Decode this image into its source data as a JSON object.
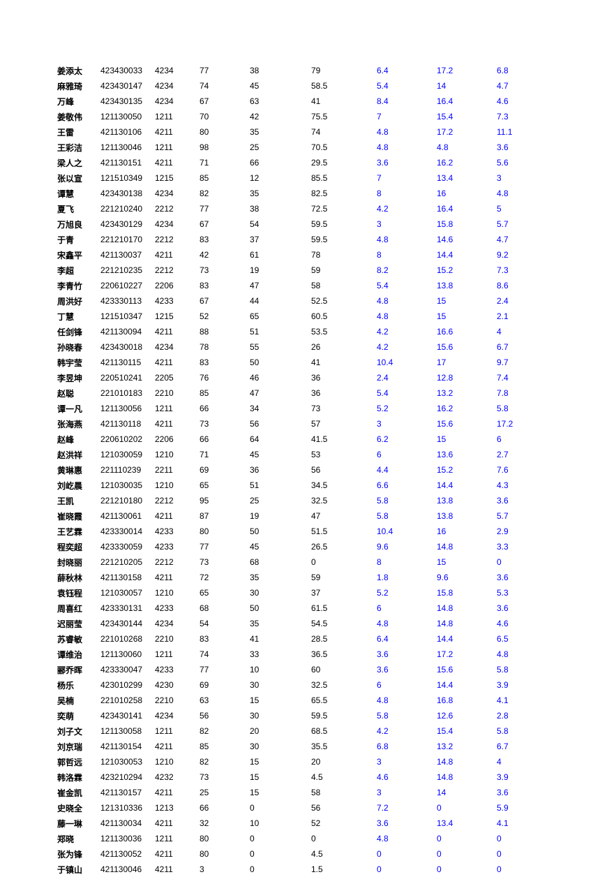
{
  "text_color_black": "#000000",
  "text_color_blue": "#0000ff",
  "background_color": "#ffffff",
  "font_size_pt": 12,
  "columns": [
    "name",
    "id",
    "code",
    "v1",
    "v2",
    "v3",
    "b1",
    "b2",
    "b3"
  ],
  "column_colors": [
    "#000000",
    "#000000",
    "#000000",
    "#000000",
    "#000000",
    "#000000",
    "#0000ff",
    "#0000ff",
    "#0000ff"
  ],
  "rows": [
    [
      "姜添太",
      "423430033",
      "4234",
      "77",
      "38",
      "79",
      "6.4",
      "17.2",
      "6.8"
    ],
    [
      "麻雅琦",
      "423430147",
      "4234",
      "74",
      "45",
      "58.5",
      "5.4",
      "14",
      "4.7"
    ],
    [
      "万峰",
      "423430135",
      "4234",
      "67",
      "63",
      "41",
      "8.4",
      "16.4",
      "4.6"
    ],
    [
      "姜敬伟",
      "121130050",
      "1211",
      "70",
      "42",
      "75.5",
      "7",
      "15.4",
      "7.3"
    ],
    [
      "王雷",
      "421130106",
      "4211",
      "80",
      "35",
      "74",
      "4.8",
      "17.2",
      "11.1"
    ],
    [
      "王彩洁",
      "121130046",
      "1211",
      "98",
      "25",
      "70.5",
      "4.8",
      "4.8",
      "3.6"
    ],
    [
      "梁人之",
      "421130151",
      "4211",
      "71",
      "66",
      "29.5",
      "3.6",
      "16.2",
      "5.6"
    ],
    [
      "张以宣",
      "121510349",
      "1215",
      "85",
      "12",
      "85.5",
      "7",
      "13.4",
      "3"
    ],
    [
      "谭慧",
      "423430138",
      "4234",
      "82",
      "35",
      "82.5",
      "8",
      "16",
      "4.8"
    ],
    [
      "夏飞",
      "221210240",
      "2212",
      "77",
      "38",
      "72.5",
      "4.2",
      "16.4",
      "5"
    ],
    [
      "万旭良",
      "423430129",
      "4234",
      "67",
      "54",
      "59.5",
      "3",
      "15.8",
      "5.7"
    ],
    [
      "于青",
      "221210170",
      "2212",
      "83",
      "37",
      "59.5",
      "4.8",
      "14.6",
      "4.7"
    ],
    [
      "宋鑫平",
      "421130037",
      "4211",
      "42",
      "61",
      "78",
      "8",
      "14.4",
      "9.2"
    ],
    [
      "李超",
      "221210235",
      "2212",
      "73",
      "19",
      "59",
      "8.2",
      "15.2",
      "7.3"
    ],
    [
      "李青竹",
      "220610227",
      "2206",
      "83",
      "47",
      "58",
      "5.4",
      "13.8",
      "8.6"
    ],
    [
      "周洪好",
      "423330113",
      "4233",
      "67",
      "44",
      "52.5",
      "4.8",
      "15",
      "2.4"
    ],
    [
      "丁慧",
      "121510347",
      "1215",
      "52",
      "65",
      "60.5",
      "4.8",
      "15",
      "2.1"
    ],
    [
      "任剑锋",
      "421130094",
      "4211",
      "88",
      "51",
      "53.5",
      "4.2",
      "16.6",
      "4"
    ],
    [
      "孙晓春",
      "423430018",
      "4234",
      "78",
      "55",
      "26",
      "4.2",
      "15.6",
      "6.7"
    ],
    [
      "韩宇莹",
      "421130115",
      "4211",
      "83",
      "50",
      "41",
      "10.4",
      "17",
      "9.7"
    ],
    [
      "李昱坤",
      "220510241",
      "2205",
      "76",
      "46",
      "36",
      "2.4",
      "12.8",
      "7.4"
    ],
    [
      "赵聪",
      "221010183",
      "2210",
      "85",
      "47",
      "36",
      "5.4",
      "13.2",
      "7.8"
    ],
    [
      "谭一凡",
      "121130056",
      "1211",
      "66",
      "34",
      "73",
      "5.2",
      "16.2",
      "5.8"
    ],
    [
      "张海燕",
      "421130118",
      "4211",
      "73",
      "56",
      "57",
      "3",
      "15.6",
      "17.2"
    ],
    [
      "赵峰",
      "220610202",
      "2206",
      "66",
      "64",
      "41.5",
      "6.2",
      "15",
      "6"
    ],
    [
      "赵洪祥",
      "121030059",
      "1210",
      "71",
      "45",
      "53",
      "6",
      "13.6",
      "2.7"
    ],
    [
      "黄琳惠",
      "221110239",
      "2211",
      "69",
      "36",
      "56",
      "4.4",
      "15.2",
      "7.6"
    ],
    [
      "刘屹晨",
      "121030035",
      "1210",
      "65",
      "51",
      "34.5",
      "6.6",
      "14.4",
      "4.3"
    ],
    [
      "王凯",
      "221210180",
      "2212",
      "95",
      "25",
      "32.5",
      "5.8",
      "13.8",
      "3.6"
    ],
    [
      "崔晓霞",
      "421130061",
      "4211",
      "87",
      "19",
      "47",
      "5.8",
      "13.8",
      "5.7"
    ],
    [
      "王艺霖",
      "423330014",
      "4233",
      "80",
      "50",
      "51.5",
      "10.4",
      "16",
      "2.9"
    ],
    [
      "程奕超",
      "423330059",
      "4233",
      "77",
      "45",
      "26.5",
      "9.6",
      "14.8",
      "3.3"
    ],
    [
      "封晓丽",
      "221210205",
      "2212",
      "73",
      "68",
      "0",
      "8",
      "15",
      "0"
    ],
    [
      "薛秋林",
      "421130158",
      "4211",
      "72",
      "35",
      "59",
      "1.8",
      "9.6",
      "3.6"
    ],
    [
      "袁钰程",
      "121030057",
      "1210",
      "65",
      "30",
      "37",
      "5.2",
      "15.8",
      "5.3"
    ],
    [
      "周喜红",
      "423330131",
      "4233",
      "68",
      "50",
      "61.5",
      "6",
      "14.8",
      "3.6"
    ],
    [
      "迟丽莹",
      "423430144",
      "4234",
      "54",
      "35",
      "54.5",
      "4.8",
      "14.8",
      "4.6"
    ],
    [
      "苏睿敏",
      "221010268",
      "2210",
      "83",
      "41",
      "28.5",
      "6.4",
      "14.4",
      "6.5"
    ],
    [
      "谭维治",
      "121130060",
      "1211",
      "74",
      "33",
      "36.5",
      "3.6",
      "17.2",
      "4.8"
    ],
    [
      "郦乔晖",
      "423330047",
      "4233",
      "77",
      "10",
      "60",
      "3.6",
      "15.6",
      "5.8"
    ],
    [
      "杨乐",
      "423010299",
      "4230",
      "69",
      "30",
      "32.5",
      "6",
      "14.4",
      "3.9"
    ],
    [
      "吴楠",
      "221010258",
      "2210",
      "63",
      "15",
      "65.5",
      "4.8",
      "16.8",
      "4.1"
    ],
    [
      "奕萌",
      "423430141",
      "4234",
      "56",
      "30",
      "59.5",
      "5.8",
      "12.6",
      "2.8"
    ],
    [
      "刘子文",
      "121130058",
      "1211",
      "82",
      "20",
      "68.5",
      "4.2",
      "15.4",
      "5.8"
    ],
    [
      "刘京瑞",
      "421130154",
      "4211",
      "85",
      "30",
      "35.5",
      "6.8",
      "13.2",
      "6.7"
    ],
    [
      "郭哲远",
      "121030053",
      "1210",
      "82",
      "15",
      "20",
      "3",
      "14.8",
      "4"
    ],
    [
      "韩洛霖",
      "423210294",
      "4232",
      "73",
      "15",
      "4.5",
      "4.6",
      "14.8",
      "3.9"
    ],
    [
      "崔金凯",
      "421130157",
      "4211",
      "25",
      "15",
      "58",
      "3",
      "14",
      "3.6"
    ],
    [
      "史晓全",
      "121310336",
      "1213",
      "66",
      "0",
      "56",
      "7.2",
      "0",
      "5.9"
    ],
    [
      "藤一琳",
      "421130034",
      "4211",
      "32",
      "10",
      "52",
      "3.6",
      "13.4",
      "4.1"
    ],
    [
      "郑晓",
      "121130036",
      "1211",
      "80",
      "0",
      "0",
      "4.8",
      "0",
      "0"
    ],
    [
      "张为锋",
      "421130052",
      "4211",
      "80",
      "0",
      "4.5",
      "0",
      "0",
      "0"
    ],
    [
      "于镇山",
      "421130046",
      "4211",
      "3",
      "0",
      "1.5",
      "0",
      "0",
      "0"
    ]
  ]
}
